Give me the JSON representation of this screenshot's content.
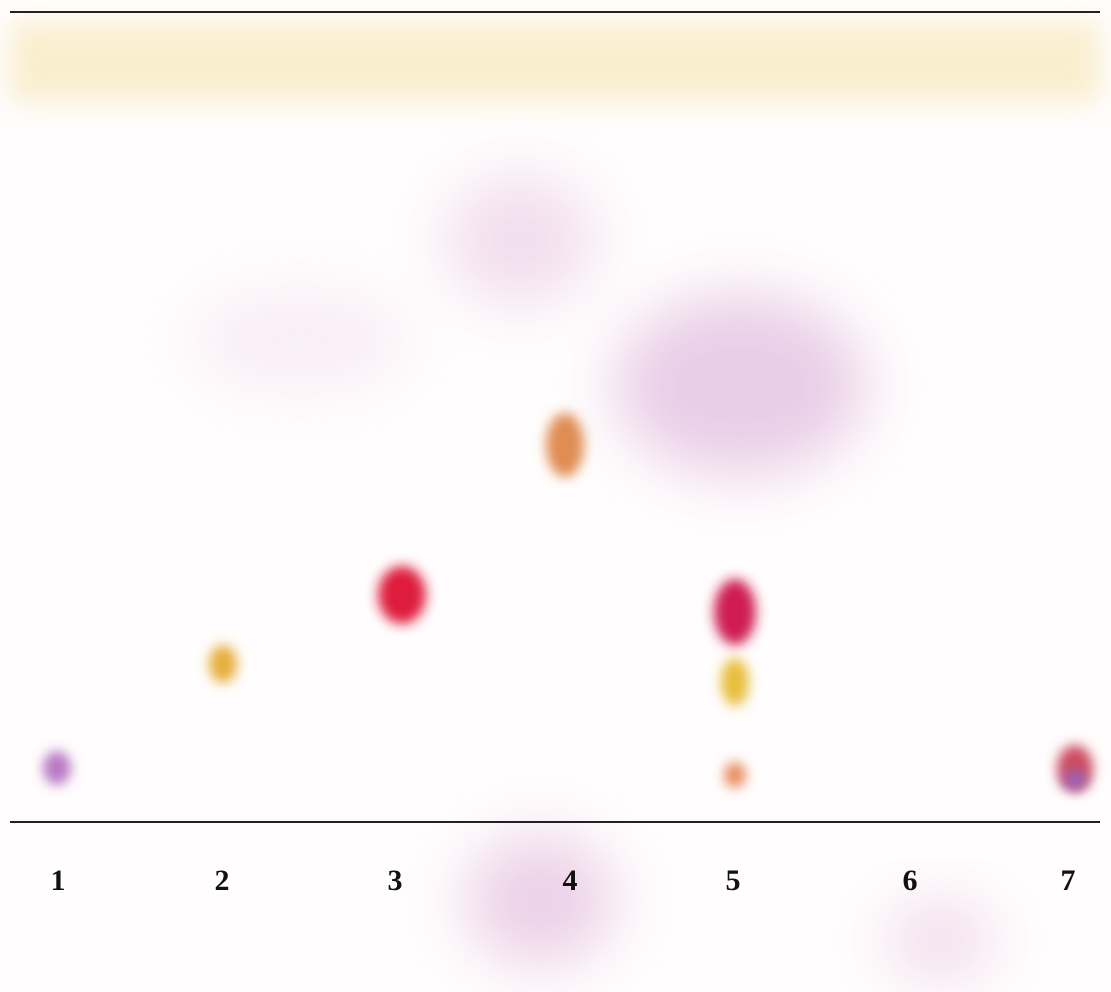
{
  "lane_labels": [
    "1",
    "2",
    "3",
    "4",
    "5",
    "6",
    "7"
  ]
}
